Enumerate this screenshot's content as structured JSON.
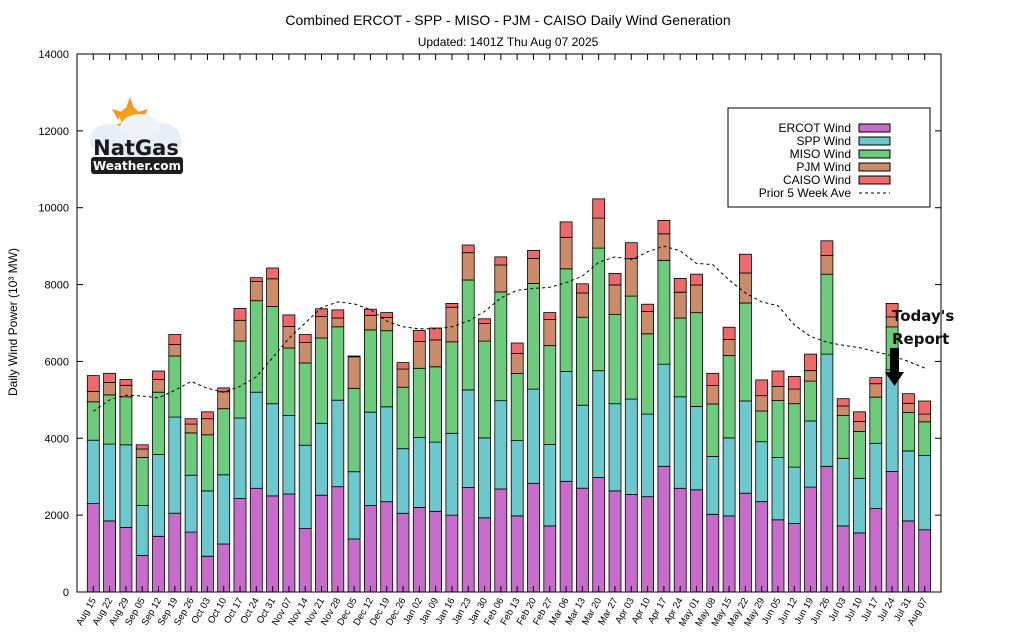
{
  "title": "Combined ERCOT - SPP - MISO - PJM - CAISO Daily Wind Generation",
  "subtitle": "Updated: 1401Z Thu Aug 07 2025",
  "logo": {
    "line1": "NatGas",
    "line2": "Weather.com"
  },
  "annotation": {
    "line1": "Today's",
    "line2": "Report"
  },
  "colors": {
    "ERCOT": "#c86ccc",
    "SPP": "#6bc8cc",
    "MISO": "#6ccc7c",
    "PJM": "#cc8c6a",
    "CAISO": "#ec6a6a",
    "avg": "#000000"
  },
  "chart_data": {
    "type": "bar",
    "stacked": true,
    "title": "Combined ERCOT - SPP - MISO - PJM - CAISO Daily Wind Generation",
    "subtitle": "Updated: 1401Z Thu Aug 07 2025",
    "xlabel": "",
    "ylabel": "Daily Wind Power (10³ MW)",
    "ylim": [
      0,
      14000
    ],
    "yticks": [
      0,
      2000,
      4000,
      6000,
      8000,
      10000,
      12000,
      14000
    ],
    "grid": false,
    "legend_position": "top-right",
    "x_tick_labels": [
      "Aug 15",
      "Aug 22",
      "Aug 29",
      "Sep 05",
      "Sep 12",
      "Sep 19",
      "Sep 26",
      "Oct 03",
      "Oct 10",
      "Oct 17",
      "Oct 24",
      "Oct 31",
      "Nov 07",
      "Nov 14",
      "Nov 21",
      "Nov 28",
      "Dec 05",
      "Dec 12",
      "Dec 19",
      "Dec 26",
      "Jan 02",
      "Jan 09",
      "Jan 16",
      "Jan 23",
      "Jan 30",
      "Feb 06",
      "Feb 13",
      "Feb 20",
      "Feb 27",
      "Mar 06",
      "Mar 13",
      "Mar 20",
      "Mar 27",
      "Apr 03",
      "Apr 10",
      "Apr 17",
      "Apr 24",
      "May 01",
      "May 08",
      "May 15",
      "May 22",
      "May 29",
      "Jun 05",
      "Jun 12",
      "Jun 19",
      "Jun 26",
      "Jul 03",
      "Jul 10",
      "Jul 17",
      "Jul 24",
      "Jul 31",
      "Aug 07"
    ],
    "series": [
      {
        "name": "ERCOT Wind",
        "values": [
          2300,
          1850,
          1680,
          950,
          1450,
          2050,
          1560,
          930,
          1250,
          2430,
          2700,
          2500,
          2550,
          1650,
          2520,
          2740,
          1380,
          2250,
          2350,
          2050,
          2200,
          2100,
          2000,
          2720,
          1930,
          2680,
          1980,
          2830,
          1720,
          2880,
          2700,
          2980,
          2630,
          2540,
          2480,
          3270,
          2700,
          2660,
          2020,
          1980,
          2570,
          2350,
          1880,
          1780,
          2730,
          3270,
          1720,
          1540,
          2170,
          3140,
          1850,
          1620
        ]
      },
      {
        "name": "SPP Wind",
        "values": [
          1650,
          2000,
          2150,
          1300,
          2130,
          2500,
          1480,
          1700,
          1800,
          2100,
          2500,
          2400,
          2040,
          2170,
          1870,
          2250,
          1750,
          2430,
          2470,
          1680,
          1820,
          1800,
          2130,
          2540,
          2080,
          2300,
          1960,
          2450,
          2120,
          2860,
          2160,
          2780,
          2270,
          2480,
          2150,
          2660,
          2380,
          2170,
          1510,
          2030,
          2400,
          1560,
          1620,
          1470,
          1720,
          2920,
          1760,
          1420,
          1700,
          2640,
          1820,
          1930
        ]
      },
      {
        "name": "MISO Wind",
        "values": [
          1000,
          1280,
          1250,
          1250,
          1620,
          1590,
          1100,
          1460,
          1720,
          2000,
          2380,
          2530,
          1760,
          2140,
          2220,
          1910,
          2170,
          2140,
          1980,
          1600,
          1800,
          1960,
          2380,
          2860,
          2520,
          2830,
          1750,
          2750,
          2570,
          2670,
          2290,
          3190,
          2320,
          2680,
          2090,
          2700,
          2050,
          2440,
          1360,
          2140,
          2550,
          800,
          1480,
          1650,
          1040,
          2080,
          1110,
          1220,
          1200,
          1120,
          1000,
          880
        ]
      },
      {
        "name": "PJM Wind",
        "values": [
          270,
          320,
          300,
          220,
          330,
          300,
          230,
          420,
          440,
          540,
          500,
          720,
          560,
          530,
          560,
          230,
          820,
          380,
          340,
          470,
          700,
          700,
          900,
          710,
          460,
          700,
          520,
          650,
          680,
          820,
          630,
          780,
          770,
          980,
          580,
          690,
          670,
          720,
          480,
          420,
          780,
          400,
          370,
          380,
          270,
          490,
          250,
          260,
          350,
          260,
          240,
          200
        ]
      },
      {
        "name": "CAISO Wind",
        "values": [
          410,
          240,
          150,
          110,
          220,
          260,
          140,
          180,
          100,
          310,
          100,
          280,
          300,
          210,
          200,
          210,
          20,
          160,
          130,
          170,
          290,
          310,
          100,
          200,
          120,
          210,
          270,
          210,
          180,
          400,
          240,
          500,
          300,
          410,
          190,
          350,
          360,
          280,
          320,
          320,
          490,
          410,
          400,
          330,
          430,
          380,
          190,
          250,
          160,
          350,
          250,
          340
        ]
      }
    ],
    "avg_series": {
      "name": "Prior 5 Week Ave",
      "style": "dashed",
      "values": [
        4700,
        5000,
        5120,
        5100,
        5050,
        5250,
        5480,
        5300,
        5200,
        5350,
        5600,
        6100,
        6600,
        7000,
        7400,
        7550,
        7500,
        7350,
        7050,
        6900,
        6850,
        6850,
        6900,
        7050,
        7300,
        7650,
        7850,
        7900,
        7930,
        8050,
        8220,
        8580,
        8720,
        8650,
        8850,
        9000,
        8880,
        8550,
        8520,
        8120,
        7780,
        7550,
        7450,
        6950,
        6650,
        6500,
        6420,
        6360,
        6250,
        6150,
        6000,
        5830
      ]
    }
  }
}
